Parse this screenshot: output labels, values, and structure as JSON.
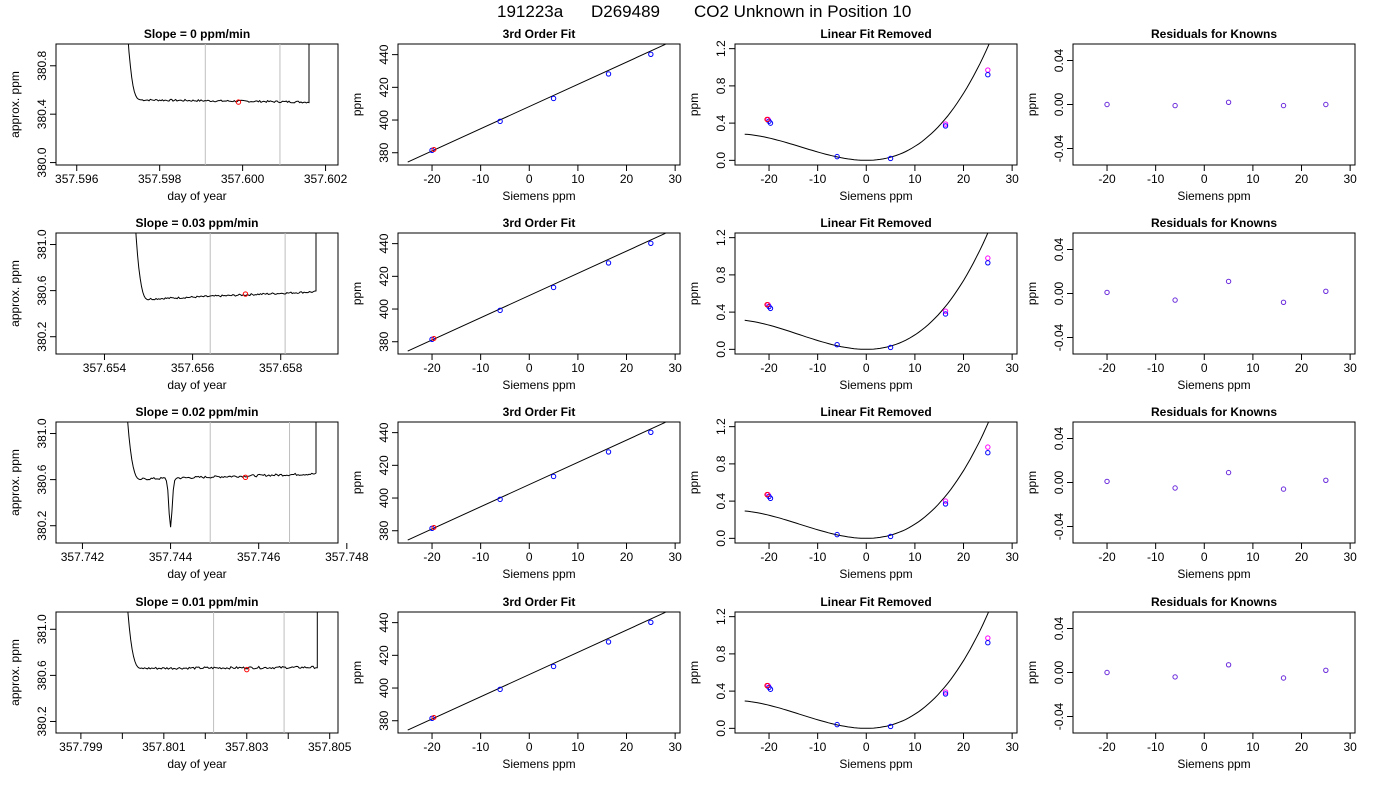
{
  "figure": {
    "title_parts": [
      "191223a",
      "D269489",
      "CO2 Unknown in Position  10"
    ]
  },
  "colors": {
    "axis": "#000000",
    "line": "#000000",
    "vline": "#bebebe",
    "point_red": "#ff0000",
    "point_blue": "#0000ff",
    "point_magenta": "#ff00ff",
    "point_purple": "#6a2bdc"
  },
  "chart_data": [
    {
      "type": "line",
      "row": 0,
      "col": 0,
      "title": "Slope =  0  ppm/min",
      "xlabel": "day of year",
      "ylabel": "approx. ppm",
      "xlim": [
        357.5955,
        357.6023
      ],
      "ylim": [
        379.98,
        380.98
      ],
      "xticks": [
        357.596,
        357.598,
        357.6,
        357.602
      ],
      "xtick_labels": [
        "357.596",
        "357.598",
        "357.600",
        "357.602"
      ],
      "yticks": [
        380.0,
        380.4,
        380.8
      ],
      "ytick_labels": [
        "380.0",
        "380.4",
        "380.8"
      ],
      "vlines": [
        357.5991,
        357.6009
      ],
      "trace": {
        "x_start": 357.5971,
        "x_end": 357.6016,
        "start_y": 382.0,
        "base": 380.52,
        "drift": -0.02,
        "noise": 0.008,
        "end_y": 382.0
      },
      "marker": {
        "x": 357.5999,
        "y": 380.5
      }
    },
    {
      "type": "scatter",
      "row": 0,
      "col": 1,
      "title": "3rd Order Fit",
      "xlabel": "Siemens ppm",
      "ylabel": "ppm",
      "xlim": [
        -27,
        31
      ],
      "ylim": [
        372.5,
        446.5
      ],
      "xticks": [
        -20,
        -10,
        0,
        10,
        20,
        30
      ],
      "xtick_labels": [
        "-20",
        "-10",
        "0",
        "10",
        "20",
        "30"
      ],
      "yticks": [
        380,
        400,
        420,
        440
      ],
      "ytick_labels": [
        "380",
        "400",
        "420",
        "440"
      ],
      "fit": {
        "x": [
          -25,
          28
        ],
        "y": [
          374.3,
          446.3
        ]
      },
      "points": {
        "x": [
          -20,
          -6,
          5,
          16.3,
          25
        ],
        "y": [
          381.5,
          399.2,
          413.2,
          428.2,
          440.2
        ]
      }
    },
    {
      "type": "scatter",
      "row": 0,
      "col": 2,
      "title": "Linear Fit Removed",
      "xlabel": "Siemens ppm",
      "ylabel": "ppm",
      "xlim": [
        -27,
        31
      ],
      "ylim": [
        -0.05,
        1.25
      ],
      "xticks": [
        -20,
        -10,
        0,
        10,
        20,
        30
      ],
      "xtick_labels": [
        "-20",
        "-10",
        "0",
        "10",
        "20",
        "30"
      ],
      "yticks": [
        0.0,
        0.4,
        0.8,
        1.2
      ],
      "ytick_labels": [
        "0.0",
        "0.4",
        "0.8",
        "1.2"
      ],
      "curve": {
        "x_range": [
          -25,
          28
        ],
        "a": 0.0012,
        "b": 3e-05
      },
      "points": {
        "x": [
          -20,
          -19.7,
          -6,
          5,
          16.3,
          25
        ],
        "y": [
          0.42,
          0.4,
          0.04,
          0.02,
          0.37,
          0.92
        ]
      },
      "points_magenta": {
        "x": [
          -20.2,
          16.3,
          25
        ],
        "y": [
          0.44,
          0.39,
          0.97
        ]
      }
    },
    {
      "type": "scatter",
      "row": 0,
      "col": 3,
      "title": "Residuals for Knowns",
      "xlabel": "Siemens ppm",
      "ylabel": "ppm",
      "xlim": [
        -27,
        31
      ],
      "ylim": [
        -0.055,
        0.055
      ],
      "xticks": [
        -20,
        -10,
        0,
        10,
        20,
        30
      ],
      "xtick_labels": [
        "-20",
        "-10",
        "0",
        "10",
        "20",
        "30"
      ],
      "yticks": [
        -0.04,
        0.0,
        0.04
      ],
      "ytick_labels": [
        "-0.04",
        "0.00",
        "0.04"
      ],
      "points": {
        "x": [
          -20,
          -6,
          5,
          16.3,
          25
        ],
        "y": [
          0.0,
          -0.001,
          0.002,
          -0.001,
          0.0
        ]
      }
    },
    {
      "type": "line",
      "row": 1,
      "col": 0,
      "title": "Slope =  0.03  ppm/min",
      "xlabel": "day of year",
      "ylabel": "approx. ppm",
      "xlim": [
        357.6529,
        357.6593
      ],
      "ylim": [
        380.05,
        381.1
      ],
      "xticks": [
        357.654,
        357.656,
        357.658
      ],
      "xtick_labels": [
        "357.654",
        "357.656",
        "357.658"
      ],
      "yticks": [
        380.2,
        380.6,
        381.0
      ],
      "ytick_labels": [
        "380.2",
        "380.6",
        "381.0"
      ],
      "vlines": [
        357.6564,
        357.6581
      ],
      "trace": {
        "x_start": 357.6546,
        "x_end": 357.6588,
        "start_y": 382.0,
        "base": 380.52,
        "drift": 0.07,
        "noise": 0.008,
        "end_y": 382.0
      },
      "marker": {
        "x": 357.6572,
        "y": 380.57
      }
    },
    {
      "type": "scatter",
      "row": 1,
      "col": 1,
      "title": "3rd Order Fit",
      "xlabel": "Siemens ppm",
      "ylabel": "ppm",
      "xlim": [
        -27,
        31
      ],
      "ylim": [
        372.5,
        446.5
      ],
      "xticks": [
        -20,
        -10,
        0,
        10,
        20,
        30
      ],
      "xtick_labels": [
        "-20",
        "-10",
        "0",
        "10",
        "20",
        "30"
      ],
      "yticks": [
        380,
        400,
        420,
        440
      ],
      "ytick_labels": [
        "380",
        "400",
        "420",
        "440"
      ],
      "fit": {
        "x": [
          -25,
          28
        ],
        "y": [
          374.3,
          446.3
        ]
      },
      "points": {
        "x": [
          -20,
          -6,
          5,
          16.3,
          25
        ],
        "y": [
          381.5,
          399.2,
          413.2,
          428.2,
          440.2
        ]
      }
    },
    {
      "type": "scatter",
      "row": 1,
      "col": 2,
      "title": "Linear Fit Removed",
      "xlabel": "Siemens ppm",
      "ylabel": "ppm",
      "xlim": [
        -27,
        31
      ],
      "ylim": [
        -0.05,
        1.25
      ],
      "xticks": [
        -20,
        -10,
        0,
        10,
        20,
        30
      ],
      "xtick_labels": [
        "-20",
        "-10",
        "0",
        "10",
        "20",
        "30"
      ],
      "yticks": [
        0.0,
        0.4,
        0.8,
        1.2
      ],
      "ytick_labels": [
        "0.0",
        "0.4",
        "0.8",
        "1.2"
      ],
      "curve": {
        "x_range": [
          -25,
          28
        ],
        "a": 0.00125,
        "b": 3e-05
      },
      "points": {
        "x": [
          -20,
          -19.7,
          -6,
          5,
          16.3,
          25
        ],
        "y": [
          0.46,
          0.44,
          0.05,
          0.02,
          0.38,
          0.93
        ]
      },
      "points_magenta": {
        "x": [
          -20.2,
          16.3,
          25
        ],
        "y": [
          0.48,
          0.41,
          0.98
        ]
      }
    },
    {
      "type": "scatter",
      "row": 1,
      "col": 3,
      "title": "Residuals for Knowns",
      "xlabel": "Siemens ppm",
      "ylabel": "ppm",
      "xlim": [
        -27,
        31
      ],
      "ylim": [
        -0.055,
        0.055
      ],
      "xticks": [
        -20,
        -10,
        0,
        10,
        20,
        30
      ],
      "xtick_labels": [
        "-20",
        "-10",
        "0",
        "10",
        "20",
        "30"
      ],
      "yticks": [
        -0.04,
        0.0,
        0.04
      ],
      "ytick_labels": [
        "-0.04",
        "0.00",
        "0.04"
      ],
      "points": {
        "x": [
          -20,
          -6,
          5,
          16.3,
          25
        ],
        "y": [
          0.001,
          -0.006,
          0.011,
          -0.008,
          0.002
        ]
      }
    },
    {
      "type": "line",
      "row": 2,
      "col": 0,
      "title": "Slope =  0.02  ppm/min",
      "xlabel": "day of year",
      "ylabel": "approx. ppm",
      "xlim": [
        357.7414,
        357.7478
      ],
      "ylim": [
        380.05,
        381.1
      ],
      "xticks": [
        357.742,
        357.744,
        357.746,
        357.748
      ],
      "xtick_labels": [
        "357.742",
        "357.744",
        "357.746",
        "357.748"
      ],
      "yticks": [
        380.2,
        380.6,
        381.0
      ],
      "ytick_labels": [
        "380.2",
        "380.6",
        "381.0"
      ],
      "vlines": [
        357.7449,
        357.7467
      ],
      "trace": {
        "x_start": 357.7429,
        "x_end": 357.7473,
        "start_y": 382.0,
        "base": 380.6,
        "drift": 0.05,
        "noise": 0.01,
        "end_y": 382.0,
        "dip": {
          "x": 357.744,
          "y": 380.17
        }
      },
      "marker": {
        "x": 357.7457,
        "y": 380.62
      }
    },
    {
      "type": "scatter",
      "row": 2,
      "col": 1,
      "title": "3rd Order Fit",
      "xlabel": "Siemens ppm",
      "ylabel": "ppm",
      "xlim": [
        -27,
        31
      ],
      "ylim": [
        372.5,
        446.5
      ],
      "xticks": [
        -20,
        -10,
        0,
        10,
        20,
        30
      ],
      "xtick_labels": [
        "-20",
        "-10",
        "0",
        "10",
        "20",
        "30"
      ],
      "yticks": [
        380,
        400,
        420,
        440
      ],
      "ytick_labels": [
        "380",
        "400",
        "420",
        "440"
      ],
      "fit": {
        "x": [
          -25,
          28
        ],
        "y": [
          374.3,
          446.3
        ]
      },
      "points": {
        "x": [
          -20,
          -6,
          5,
          16.3,
          25
        ],
        "y": [
          381.5,
          399.2,
          413.2,
          428.2,
          440.2
        ]
      }
    },
    {
      "type": "scatter",
      "row": 2,
      "col": 2,
      "title": "Linear Fit Removed",
      "xlabel": "Siemens ppm",
      "ylabel": "ppm",
      "xlim": [
        -27,
        31
      ],
      "ylim": [
        -0.05,
        1.25
      ],
      "xticks": [
        -20,
        -10,
        0,
        10,
        20,
        30
      ],
      "xtick_labels": [
        "-20",
        "-10",
        "0",
        "10",
        "20",
        "30"
      ],
      "yticks": [
        0.0,
        0.4,
        0.8,
        1.2
      ],
      "ytick_labels": [
        "0.0",
        "0.4",
        "0.8",
        "1.2"
      ],
      "curve": {
        "x_range": [
          -25,
          28
        ],
        "a": 0.00122,
        "b": 3e-05
      },
      "points": {
        "x": [
          -20,
          -19.7,
          -6,
          5,
          16.3,
          25
        ],
        "y": [
          0.45,
          0.43,
          0.04,
          0.02,
          0.37,
          0.92
        ]
      },
      "points_magenta": {
        "x": [
          -20.2,
          16.3,
          25
        ],
        "y": [
          0.47,
          0.4,
          0.98
        ]
      }
    },
    {
      "type": "scatter",
      "row": 2,
      "col": 3,
      "title": "Residuals for Knowns",
      "xlabel": "Siemens ppm",
      "ylabel": "ppm",
      "xlim": [
        -27,
        31
      ],
      "ylim": [
        -0.055,
        0.055
      ],
      "xticks": [
        -20,
        -10,
        0,
        10,
        20,
        30
      ],
      "xtick_labels": [
        "-20",
        "-10",
        "0",
        "10",
        "20",
        "30"
      ],
      "yticks": [
        -0.04,
        0.0,
        0.04
      ],
      "ytick_labels": [
        "-0.04",
        "0.00",
        "0.04"
      ],
      "points": {
        "x": [
          -20,
          -6,
          5,
          16.3,
          25
        ],
        "y": [
          0.001,
          -0.005,
          0.009,
          -0.006,
          0.002
        ]
      }
    },
    {
      "type": "line",
      "row": 3,
      "col": 0,
      "title": "Slope =  0.01  ppm/min",
      "xlabel": "day of year",
      "ylabel": "approx. ppm",
      "xlim": [
        357.7984,
        357.8052
      ],
      "ylim": [
        380.1,
        381.15
      ],
      "xticks": [
        357.799,
        357.801,
        357.803,
        357.805
      ],
      "xtick_labels": [
        "357.799",
        "357.801",
        "357.803",
        "357.805"
      ],
      "minor_xticks": [
        357.8,
        357.802,
        357.804
      ],
      "yticks": [
        380.2,
        380.6,
        381.0
      ],
      "ytick_labels": [
        "380.2",
        "380.6",
        "381.0"
      ],
      "vlines": [
        357.8022,
        357.8039
      ],
      "trace": {
        "x_start": 357.8,
        "x_end": 357.8047,
        "start_y": 382.0,
        "base": 380.66,
        "drift": 0.01,
        "noise": 0.01,
        "end_y": 382.0
      },
      "marker": {
        "x": 357.803,
        "y": 380.65
      }
    },
    {
      "type": "scatter",
      "row": 3,
      "col": 1,
      "title": "3rd Order Fit",
      "xlabel": "Siemens ppm",
      "ylabel": "ppm",
      "xlim": [
        -27,
        31
      ],
      "ylim": [
        372.5,
        446.5
      ],
      "xticks": [
        -20,
        -10,
        0,
        10,
        20,
        30
      ],
      "xtick_labels": [
        "-20",
        "-10",
        "0",
        "10",
        "20",
        "30"
      ],
      "yticks": [
        380,
        400,
        420,
        440
      ],
      "ytick_labels": [
        "380",
        "400",
        "420",
        "440"
      ],
      "fit": {
        "x": [
          -25,
          28
        ],
        "y": [
          374.3,
          446.3
        ]
      },
      "points": {
        "x": [
          -20,
          -6,
          5,
          16.3,
          25
        ],
        "y": [
          381.5,
          399.2,
          413.2,
          428.2,
          440.2
        ]
      }
    },
    {
      "type": "scatter",
      "row": 3,
      "col": 2,
      "title": "Linear Fit Removed",
      "xlabel": "Siemens ppm",
      "ylabel": "ppm",
      "xlim": [
        -27,
        31
      ],
      "ylim": [
        -0.05,
        1.25
      ],
      "xticks": [
        -20,
        -10,
        0,
        10,
        20,
        30
      ],
      "xtick_labels": [
        "-20",
        "-10",
        "0",
        "10",
        "20",
        "30"
      ],
      "yticks": [
        0.0,
        0.4,
        0.8,
        1.2
      ],
      "ytick_labels": [
        "0.0",
        "0.4",
        "0.8",
        "1.2"
      ],
      "curve": {
        "x_range": [
          -25,
          28
        ],
        "a": 0.00122,
        "b": 3e-05
      },
      "points": {
        "x": [
          -20,
          -19.7,
          -6,
          5,
          16.3,
          25
        ],
        "y": [
          0.44,
          0.42,
          0.04,
          0.02,
          0.37,
          0.92
        ]
      },
      "points_magenta": {
        "x": [
          -20.2,
          16.3,
          25
        ],
        "y": [
          0.46,
          0.39,
          0.97
        ]
      }
    },
    {
      "type": "scatter",
      "row": 3,
      "col": 3,
      "title": "Residuals for Knowns",
      "xlabel": "Siemens ppm",
      "ylabel": "ppm",
      "xlim": [
        -27,
        31
      ],
      "ylim": [
        -0.055,
        0.055
      ],
      "xticks": [
        -20,
        -10,
        0,
        10,
        20,
        30
      ],
      "xtick_labels": [
        "-20",
        "-10",
        "0",
        "10",
        "20",
        "30"
      ],
      "yticks": [
        -0.04,
        0.0,
        0.04
      ],
      "ytick_labels": [
        "-0.04",
        "0.00",
        "0.04"
      ],
      "points": {
        "x": [
          -20,
          -6,
          5,
          16.3,
          25
        ],
        "y": [
          0.0,
          -0.004,
          0.007,
          -0.005,
          0.002
        ]
      }
    }
  ]
}
